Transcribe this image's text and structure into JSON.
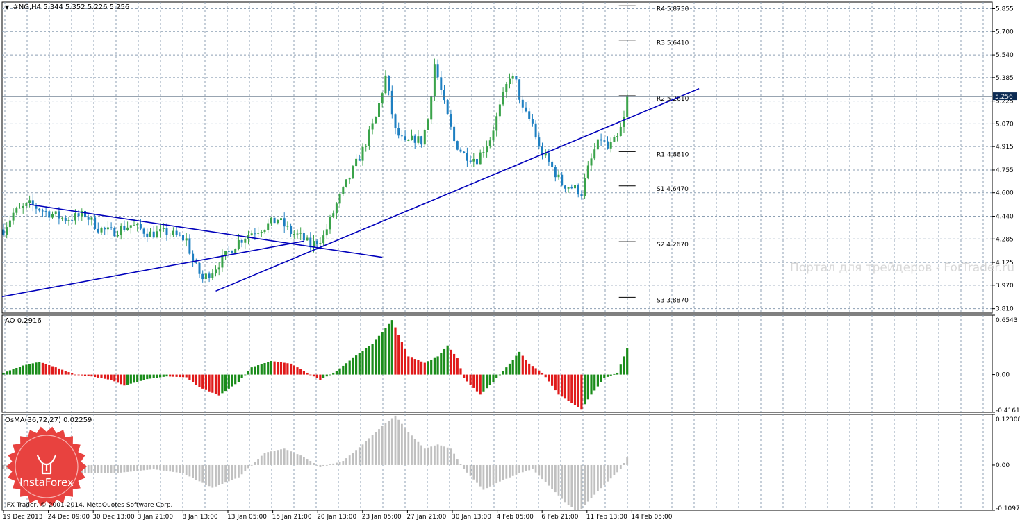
{
  "window": {
    "symbol_label": "#NG,H4  5.344 5.352 5.226 5.256",
    "current_price": "5.256",
    "copyright": "IFX Trader, © 2001-2014, MetaQuotes Software Corp.",
    "watermark": "Портал для трейдеров - ForTrader.ru",
    "logo_text": "InstaForex"
  },
  "colors": {
    "bull": "#3aa34a",
    "bear": "#1e7fc1",
    "trendline": "#0000bb",
    "ao_up": "#1a8c1a",
    "ao_down": "#e01a1a",
    "osma": "#c0c0c0",
    "grid": "#8c9fb3"
  },
  "chart_data": [
    {
      "type": "candlestick",
      "panel": "price",
      "ylim": [
        3.78,
        5.9
      ],
      "y_ticks": [
        "5.855",
        "5.700",
        "5.540",
        "5.385",
        "5.225",
        "5.070",
        "4.915",
        "4.755",
        "4.600",
        "4.440",
        "4.285",
        "4.125",
        "3.970",
        "3.810"
      ],
      "x_ticks": [
        "19 Dec 2013",
        "24 Dec 09:00",
        "30 Dec 13:00",
        "3 Jan 21:00",
        "8 Jan 13:00",
        "13 Jan 05:00",
        "15 Jan 21:00",
        "20 Jan 13:00",
        "23 Jan 05:00",
        "27 Jan 21:00",
        "30 Jan 13:00",
        "4 Feb 05:00",
        "6 Feb 21:00",
        "11 Feb 13:00",
        "14 Feb 05:00"
      ],
      "close_path": [
        [
          0,
          4.35
        ],
        [
          3,
          4.46
        ],
        [
          8,
          4.52
        ],
        [
          13,
          4.47
        ],
        [
          19,
          4.42
        ],
        [
          25,
          4.45
        ],
        [
          29,
          4.36
        ],
        [
          33,
          4.33
        ],
        [
          39,
          4.38
        ],
        [
          45,
          4.32
        ],
        [
          50,
          4.33
        ],
        [
          56,
          4.28
        ],
        [
          58,
          4.13
        ],
        [
          61,
          4.01
        ],
        [
          64,
          4.07
        ],
        [
          68,
          4.17
        ],
        [
          72,
          4.27
        ],
        [
          76,
          4.33
        ],
        [
          80,
          4.37
        ],
        [
          84,
          4.42
        ],
        [
          88,
          4.33
        ],
        [
          91,
          4.3
        ],
        [
          94,
          4.24
        ],
        [
          98,
          4.3
        ],
        [
          102,
          4.52
        ],
        [
          106,
          4.71
        ],
        [
          110,
          4.89
        ],
        [
          114,
          5.11
        ],
        [
          117,
          5.39
        ],
        [
          120,
          5.02
        ],
        [
          123,
          4.93
        ],
        [
          126,
          4.97
        ],
        [
          128,
          4.95
        ],
        [
          130,
          5.1
        ],
        [
          132,
          5.48
        ],
        [
          135,
          5.2
        ],
        [
          138,
          4.95
        ],
        [
          141,
          4.86
        ],
        [
          145,
          4.83
        ],
        [
          149,
          4.97
        ],
        [
          152,
          5.18
        ],
        [
          155,
          5.4
        ],
        [
          157,
          5.35
        ],
        [
          159,
          5.16
        ],
        [
          162,
          5.07
        ],
        [
          164,
          4.9
        ],
        [
          166,
          4.84
        ],
        [
          168,
          4.77
        ],
        [
          171,
          4.66
        ],
        [
          175,
          4.63
        ],
        [
          177,
          4.6
        ],
        [
          179,
          4.76
        ],
        [
          181,
          4.89
        ],
        [
          183,
          4.97
        ],
        [
          185,
          4.9
        ],
        [
          188,
          4.97
        ],
        [
          190,
          5.1
        ],
        [
          191,
          5.26
        ]
      ],
      "trendlines": [
        {
          "from": {
            "bar": 8,
            "price": 4.52
          },
          "to": {
            "bar": 116,
            "price": 4.16
          }
        },
        {
          "from": {
            "bar": -1,
            "price": 3.89
          },
          "to": {
            "bar": 92,
            "price": 4.27
          }
        },
        {
          "from": {
            "bar": 65,
            "price": 3.93
          },
          "to": {
            "bar": 213,
            "price": 5.31
          }
        }
      ],
      "pivot_levels": [
        {
          "label": "R4",
          "value": "5.8750",
          "price": 5.875
        },
        {
          "label": "R3",
          "value": "5.6410",
          "price": 5.641
        },
        {
          "label": "R2",
          "value": "5.2610",
          "price": 5.261
        },
        {
          "label": "R1",
          "value": "4.8810",
          "price": 4.881
        },
        {
          "label": "S1",
          "value": "4.6470",
          "price": 4.647
        },
        {
          "label": "S2",
          "value": "4.2670",
          "price": 4.267
        },
        {
          "label": "S3",
          "value": "3.8870",
          "price": 3.887
        }
      ]
    },
    {
      "type": "bar",
      "panel": "ao",
      "title": "AO 0.2916",
      "ylim": [
        -0.4161,
        0.6543
      ],
      "y_ticks": [
        "0.6543",
        "0.00",
        "-0.4161"
      ],
      "path": [
        [
          0,
          0.02
        ],
        [
          6,
          0.1
        ],
        [
          11,
          0.14
        ],
        [
          16,
          0.08
        ],
        [
          22,
          0.0
        ],
        [
          27,
          -0.02
        ],
        [
          33,
          -0.06
        ],
        [
          37,
          -0.12
        ],
        [
          44,
          -0.05
        ],
        [
          50,
          -0.02
        ],
        [
          56,
          -0.03
        ],
        [
          60,
          -0.14
        ],
        [
          66,
          -0.23
        ],
        [
          72,
          -0.08
        ],
        [
          76,
          0.08
        ],
        [
          82,
          0.15
        ],
        [
          88,
          0.12
        ],
        [
          94,
          0.0
        ],
        [
          97,
          -0.06
        ],
        [
          102,
          0.04
        ],
        [
          108,
          0.21
        ],
        [
          113,
          0.34
        ],
        [
          119,
          0.6
        ],
        [
          124,
          0.2
        ],
        [
          129,
          0.13
        ],
        [
          133,
          0.2
        ],
        [
          136,
          0.32
        ],
        [
          139,
          0.18
        ],
        [
          141,
          -0.04
        ],
        [
          146,
          -0.22
        ],
        [
          150,
          -0.08
        ],
        [
          155,
          0.12
        ],
        [
          158,
          0.25
        ],
        [
          161,
          0.12
        ],
        [
          165,
          0.02
        ],
        [
          170,
          -0.22
        ],
        [
          177,
          -0.38
        ],
        [
          180,
          -0.22
        ],
        [
          184,
          -0.04
        ],
        [
          188,
          0.02
        ],
        [
          191,
          0.29
        ]
      ]
    },
    {
      "type": "bar",
      "panel": "osma",
      "title": "OsMA(36,72,27) 0.02259",
      "ylim": [
        -0.10972,
        0.12308
      ],
      "y_ticks": [
        "0.12308",
        "0.00",
        "-0.10972"
      ],
      "path": [
        [
          0,
          -0.01
        ],
        [
          10,
          -0.015
        ],
        [
          22,
          -0.02
        ],
        [
          34,
          -0.02
        ],
        [
          46,
          -0.01
        ],
        [
          55,
          -0.02
        ],
        [
          64,
          -0.055
        ],
        [
          72,
          -0.03
        ],
        [
          80,
          0.03
        ],
        [
          86,
          0.04
        ],
        [
          92,
          0.02
        ],
        [
          97,
          -0.005
        ],
        [
          104,
          0.01
        ],
        [
          110,
          0.05
        ],
        [
          116,
          0.095
        ],
        [
          120,
          0.12
        ],
        [
          124,
          0.08
        ],
        [
          129,
          0.04
        ],
        [
          133,
          0.05
        ],
        [
          137,
          0.04
        ],
        [
          141,
          -0.01
        ],
        [
          147,
          -0.06
        ],
        [
          152,
          -0.04
        ],
        [
          158,
          -0.02
        ],
        [
          162,
          -0.01
        ],
        [
          167,
          -0.05
        ],
        [
          172,
          -0.09
        ],
        [
          176,
          -0.115
        ],
        [
          180,
          -0.08
        ],
        [
          185,
          -0.04
        ],
        [
          189,
          -0.01
        ],
        [
          191,
          0.02
        ]
      ]
    }
  ]
}
